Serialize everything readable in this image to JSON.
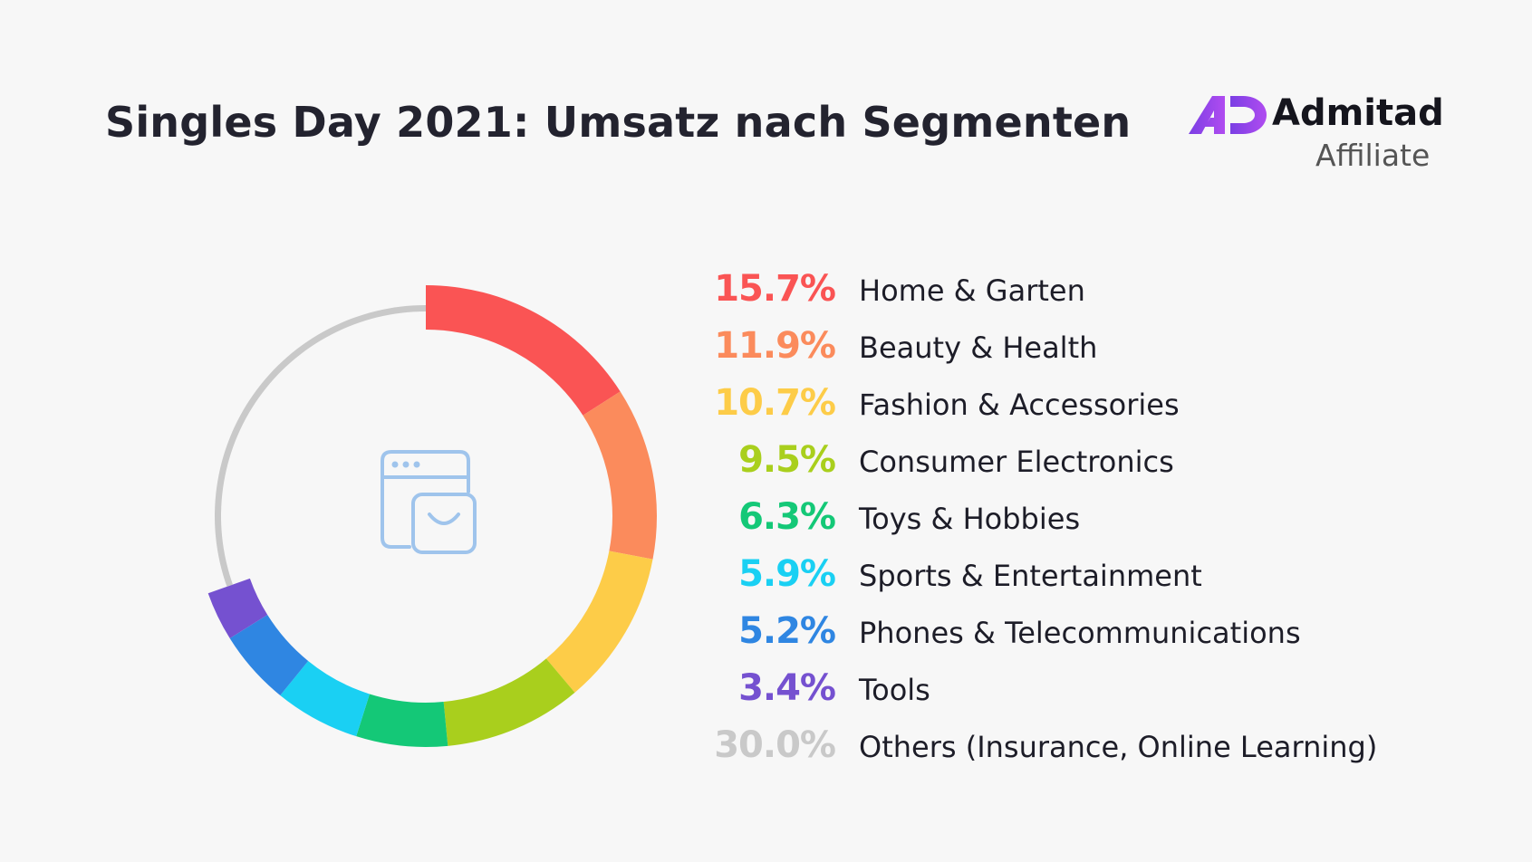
{
  "header": {
    "title": "Singles Day 2021: Umsatz nach Segmenten"
  },
  "logo": {
    "brand": "Admitad",
    "sub": "Affiliate",
    "icon": "admitad-ad-logo-icon",
    "colors": [
      "#7b3fe4",
      "#b04cf0"
    ]
  },
  "center_icon": "shopping-bag-browser-icon",
  "chart_data": {
    "type": "pie",
    "donut": true,
    "title": "Singles Day 2021: Umsatz nach Segmenten",
    "unit": "%",
    "legend_position": "right",
    "slices": [
      {
        "label": "Home & Garten",
        "value": 15.7,
        "display": "15.7%",
        "color": "#fa5454"
      },
      {
        "label": "Beauty & Health",
        "value": 11.9,
        "display": "11.9%",
        "color": "#fb8b5c"
      },
      {
        "label": "Fashion & Accessories",
        "value": 10.7,
        "display": "10.7%",
        "color": "#fdcc48"
      },
      {
        "label": "Consumer Electronics",
        "value": 9.5,
        "display": "9.5%",
        "color": "#a9cf1d"
      },
      {
        "label": "Toys & Hobbies",
        "value": 6.3,
        "display": "6.3%",
        "color": "#14c877"
      },
      {
        "label": "Sports & Entertainment",
        "value": 5.9,
        "display": "5.9%",
        "color": "#1ad0f3"
      },
      {
        "label": "Phones & Telecommunications",
        "value": 5.2,
        "display": "5.2%",
        "color": "#2f86e2"
      },
      {
        "label": "Tools",
        "value": 3.4,
        "display": "3.4%",
        "color": "#7551d0"
      },
      {
        "label": "Others (Insurance, Online Learning)",
        "value": 30.0,
        "display": "30.0%",
        "color": "#c9c9c9"
      }
    ]
  }
}
